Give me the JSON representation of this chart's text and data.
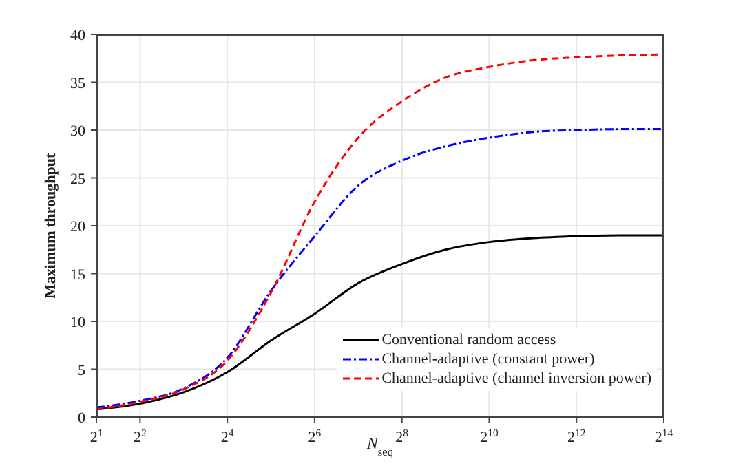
{
  "chart_data": {
    "type": "line",
    "xlabel": "N$_{seq}$",
    "ylabel": "Maximum throughput",
    "x": [
      2,
      4,
      8,
      16,
      32,
      64,
      128,
      256,
      512,
      1024,
      2048,
      4096,
      8192,
      16384
    ],
    "log": "x",
    "grid": true,
    "legend": "bottom right",
    "marker": "none",
    "xlim": [
      2,
      16384
    ],
    "xticks": [
      {
        "value": 2,
        "label": "2$^{1}$"
      },
      {
        "value": 4,
        "label": "2$^{2}$"
      },
      {
        "value": 16,
        "label": "2$^{4}$"
      },
      {
        "value": 64,
        "label": "2$^{6}$"
      },
      {
        "value": 256,
        "label": "2$^{8}$"
      },
      {
        "value": 1024,
        "label": "2$^{10}$"
      },
      {
        "value": 4096,
        "label": "2$^{12}$"
      },
      {
        "value": 16384,
        "label": "2$^{14}$"
      }
    ],
    "ylim": [
      0,
      40
    ],
    "yticks": [
      0,
      5,
      10,
      15,
      20,
      25,
      30,
      35,
      40
    ],
    "series": [
      {
        "name": "Conventional random access",
        "color": "#000000",
        "line_style": "solid",
        "values": [
          0.8,
          1.4,
          2.6,
          4.7,
          8.0,
          10.8,
          14.0,
          16.0,
          17.5,
          18.3,
          18.7,
          18.9,
          19.0,
          19.0
        ]
      },
      {
        "name": "Channel-adaptive (constant power)",
        "color": "#0000ff",
        "line_style": "dotted",
        "values": [
          1.0,
          1.7,
          3.0,
          6.2,
          13.2,
          18.9,
          24.2,
          26.8,
          28.3,
          29.2,
          29.8,
          30.0,
          30.1,
          30.1
        ]
      },
      {
        "name": "Channel-adaptive (channel inversion power)",
        "color": "#ff0000",
        "line_style": "dashed",
        "values": [
          0.8,
          1.6,
          2.9,
          5.9,
          13.0,
          22.5,
          29.2,
          33.0,
          35.5,
          36.6,
          37.3,
          37.6,
          37.8,
          37.9
        ]
      }
    ]
  }
}
